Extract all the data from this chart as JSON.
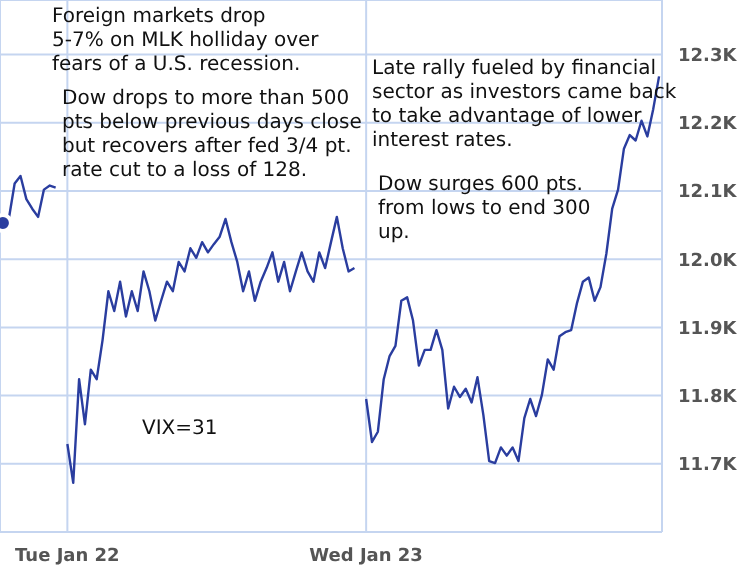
{
  "chart_data": {
    "type": "line",
    "annotations": [
      "Foreign markets drop\n5-7% on MLK holliday over\nfears of a U.S. recession.",
      "Dow drops to more than 500\npts below previous days close\nbut recovers after fed 3/4 pt.\nrate cut to a loss of 128.",
      "Late rally fueled by financial\nsector as investors came back\nto take advantage of lower\ninterest rates.",
      "Dow surges 600 pts.\nfrom lows to end 300\nup.",
      "VIX=31"
    ],
    "categories": [
      null,
      null,
      null,
      null,
      null,
      null,
      null,
      null,
      null,
      null,
      null,
      "Tue Jan 22",
      null,
      null,
      null,
      null,
      null,
      null,
      null,
      null,
      null,
      null,
      null,
      null,
      null,
      null,
      null,
      null,
      null,
      null,
      null,
      null,
      null,
      null,
      null,
      null,
      null,
      null,
      null,
      null,
      null,
      null,
      null,
      null,
      null,
      null,
      null,
      null,
      null,
      null,
      null,
      null,
      null,
      null,
      null,
      null,
      null,
      null,
      null,
      null,
      null,
      null,
      "Wed Jan 23",
      null,
      null,
      null,
      null,
      null,
      null,
      null,
      null,
      null,
      null,
      null,
      null,
      null,
      null,
      null,
      null,
      null,
      null,
      null,
      null,
      null,
      null,
      null,
      null,
      null,
      null,
      null,
      null,
      null,
      null,
      null,
      null,
      null,
      null,
      null,
      null,
      null,
      null,
      null,
      null,
      null,
      null,
      null,
      null,
      null,
      null,
      null,
      null,
      null,
      null
    ],
    "series": [
      {
        "color": "#2a3d9f",
        "values": [
          12053,
          12059,
          12111,
          12122,
          12088,
          12074,
          12062,
          12102,
          12108,
          12105,
          null,
          11729,
          11672,
          11824,
          11758,
          11838,
          11824,
          11881,
          11953,
          11924,
          11967,
          11916,
          11953,
          11924,
          11982,
          11953,
          11910,
          11939,
          11967,
          11953,
          11996,
          11982,
          12016,
          12002,
          12025,
          12010,
          12022,
          12033,
          12059,
          12025,
          11996,
          11953,
          11982,
          11939,
          11967,
          11987,
          12010,
          11967,
          11996,
          11953,
          11982,
          12010,
          11982,
          11967,
          12010,
          11987,
          12025,
          12062,
          12016,
          11982,
          11987,
          null,
          11795,
          11732,
          11747,
          11824,
          11858,
          11873,
          11939,
          11944,
          11910,
          11844,
          11867,
          11867,
          11896,
          11867,
          11781,
          11813,
          11798,
          11810,
          11790,
          11827,
          11772,
          11704,
          11701,
          11724,
          11712,
          11724,
          11704,
          11767,
          11795,
          11770,
          11801,
          11853,
          11838,
          11887,
          11893,
          11896,
          11936,
          11967,
          11973,
          11939,
          11959,
          12008,
          12074,
          12102,
          12162,
          12182,
          12174,
          12203,
          12180,
          12220,
          12268
        ]
      }
    ],
    "ylim": [
      11600,
      12380
    ],
    "yticks": [
      {
        "value": 11700,
        "label": "11.7K"
      },
      {
        "value": 11800,
        "label": "11.8K"
      },
      {
        "value": 11900,
        "label": "11.9K"
      },
      {
        "value": 12000,
        "label": "12.0K"
      },
      {
        "value": 12100,
        "label": "12.1K"
      },
      {
        "value": 12200,
        "label": "12.2K"
      },
      {
        "value": 12300,
        "label": "12.3K"
      }
    ],
    "grid": true
  }
}
